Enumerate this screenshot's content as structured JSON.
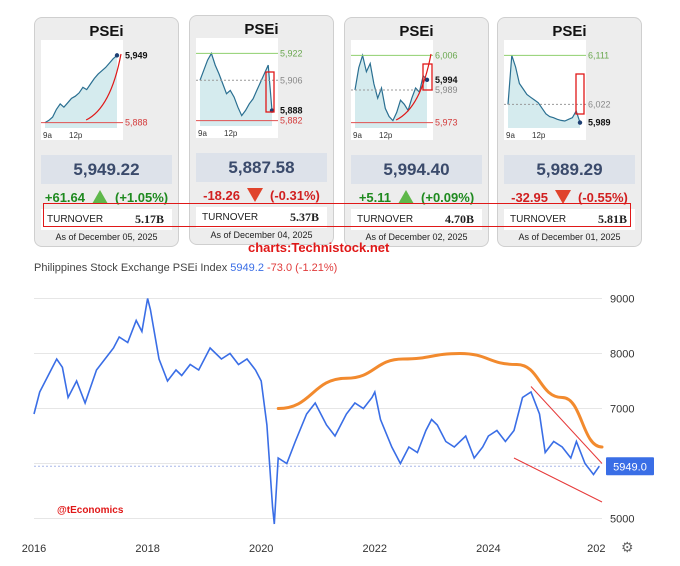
{
  "cards": [
    {
      "title": "PSEi",
      "price": "5,949.22",
      "change": "+61.64",
      "pct": "(+1.05%)",
      "dir": "up",
      "turnover_label": "TURNOVER",
      "turnover": "5.17B",
      "asof": "As of December 05, 2025",
      "high": "",
      "low": "5,888",
      "last": "5,949",
      "prev": "",
      "times": [
        "9a",
        "12p"
      ],
      "spark": [
        5888,
        5890,
        5893,
        5900,
        5905,
        5902,
        5906,
        5910,
        5912,
        5915,
        5920,
        5918,
        5923,
        5928,
        5932,
        5935,
        5938,
        5942,
        5946,
        5949
      ]
    },
    {
      "title": "PSEi",
      "price": "5,887.58",
      "change": "-18.26",
      "pct": "(-0.31%)",
      "dir": "down",
      "turnover_label": "TURNOVER",
      "turnover": "5.37B",
      "asof": "As of December 04, 2025",
      "high": "5,922",
      "low": "5,882",
      "last": "5,888",
      "prev": "5,906",
      "times": [
        "9a",
        "12p"
      ],
      "spark": [
        5906,
        5912,
        5918,
        5922,
        5915,
        5910,
        5904,
        5898,
        5900,
        5896,
        5890,
        5885,
        5888,
        5892,
        5895,
        5900,
        5905,
        5910,
        5915,
        5888
      ]
    },
    {
      "title": "PSEi",
      "price": "5,994.40",
      "change": "+5.11",
      "pct": "(+0.09%)",
      "dir": "up",
      "turnover_label": "TURNOVER",
      "turnover": "4.70B",
      "asof": "As of December 02, 2025",
      "high": "6,006",
      "low": "5,973",
      "last": "5,994",
      "prev": "5,989",
      "times": [
        "9a",
        "12p"
      ],
      "spark": [
        5989,
        6000,
        6006,
        5998,
        6002,
        5992,
        5985,
        5990,
        5980,
        5976,
        5974,
        5978,
        5984,
        5982,
        5979,
        5985,
        5990,
        5988,
        5996,
        5994
      ]
    },
    {
      "title": "PSEi",
      "price": "5,989.29",
      "change": "-32.95",
      "pct": "(-0.55%)",
      "dir": "down",
      "turnover_label": "TURNOVER",
      "turnover": "5.81B",
      "asof": "As of December 01, 2025",
      "high": "6,111",
      "low": "",
      "last": "5,989",
      "prev": "6,022",
      "times": [
        "9a",
        "12p"
      ],
      "spark": [
        6022,
        6111,
        6090,
        6060,
        6050,
        6040,
        6035,
        6030,
        6025,
        6015,
        6005,
        6000,
        5998,
        5995,
        5993,
        5992,
        5995,
        5998,
        6010,
        5989
      ]
    }
  ],
  "credit": "charts:Technistock.net",
  "watermark": "@tEconomics",
  "main": {
    "title": "Philippines Stock Exchange PSEi Index",
    "value": "5949.2",
    "change": "-73.0 (-1.21%)",
    "last_label": "5949.0"
  },
  "chart_data": {
    "type": "line",
    "title": "Philippines Stock Exchange PSEi Index",
    "x_ticks": [
      "2016",
      "2018",
      "2020",
      "2022",
      "2024",
      "202"
    ],
    "y_ticks": [
      5000,
      6000,
      7000,
      8000,
      9000
    ],
    "ylim": [
      4700,
      9300
    ],
    "xlim": [
      2016.0,
      2026.0
    ],
    "series": [
      {
        "name": "PSEi",
        "x": [
          2016.0,
          2016.1,
          2016.25,
          2016.4,
          2016.5,
          2016.6,
          2016.75,
          2016.9,
          2017.0,
          2017.1,
          2017.25,
          2017.4,
          2017.5,
          2017.65,
          2017.8,
          2017.9,
          2018.0,
          2018.05,
          2018.2,
          2018.35,
          2018.5,
          2018.6,
          2018.75,
          2018.9,
          2019.0,
          2019.1,
          2019.3,
          2019.45,
          2019.6,
          2019.75,
          2019.9,
          2020.0,
          2020.1,
          2020.2,
          2020.23,
          2020.3,
          2020.45,
          2020.6,
          2020.8,
          2020.95,
          2021.0,
          2021.15,
          2021.3,
          2021.5,
          2021.65,
          2021.8,
          2021.95,
          2022.0,
          2022.1,
          2022.3,
          2022.45,
          2022.6,
          2022.75,
          2022.9,
          2023.0,
          2023.1,
          2023.25,
          2023.4,
          2023.6,
          2023.75,
          2023.9,
          2024.0,
          2024.15,
          2024.3,
          2024.45,
          2024.6,
          2024.75,
          2024.9,
          2025.0,
          2025.15,
          2025.3,
          2025.45,
          2025.55,
          2025.7,
          2025.85,
          2025.95
        ],
        "values": [
          6900,
          7300,
          7600,
          7900,
          7750,
          7200,
          7500,
          7100,
          7400,
          7700,
          7900,
          8100,
          8300,
          8200,
          8600,
          8400,
          9000,
          8800,
          7900,
          7500,
          7700,
          7600,
          7800,
          7700,
          7900,
          8100,
          7900,
          8000,
          7800,
          7900,
          7700,
          7500,
          6700,
          5200,
          4900,
          6100,
          6000,
          6400,
          6900,
          7100,
          7000,
          6700,
          6500,
          6900,
          7100,
          7000,
          7200,
          7300,
          6800,
          6300,
          6000,
          6300,
          6200,
          6600,
          6800,
          6700,
          6400,
          6300,
          6500,
          6100,
          6300,
          6500,
          6600,
          6400,
          6600,
          7200,
          7300,
          6900,
          6200,
          6400,
          6300,
          6100,
          6400,
          6000,
          5800,
          5949
        ]
      },
      {
        "name": "Resistance arc (orange)",
        "x": [
          2020.3,
          2021.5,
          2022.5,
          2023.5,
          2024.5,
          2025.3,
          2026.0
        ],
        "values": [
          7000,
          7550,
          7900,
          8000,
          7800,
          7200,
          6300
        ]
      },
      {
        "name": "Upper trendline (red)",
        "x": [
          2024.75,
          2026.0
        ],
        "values": [
          7400,
          6000
        ]
      },
      {
        "name": "Lower trendline (red)",
        "x": [
          2024.45,
          2026.0
        ],
        "values": [
          6100,
          5300
        ]
      }
    ]
  }
}
